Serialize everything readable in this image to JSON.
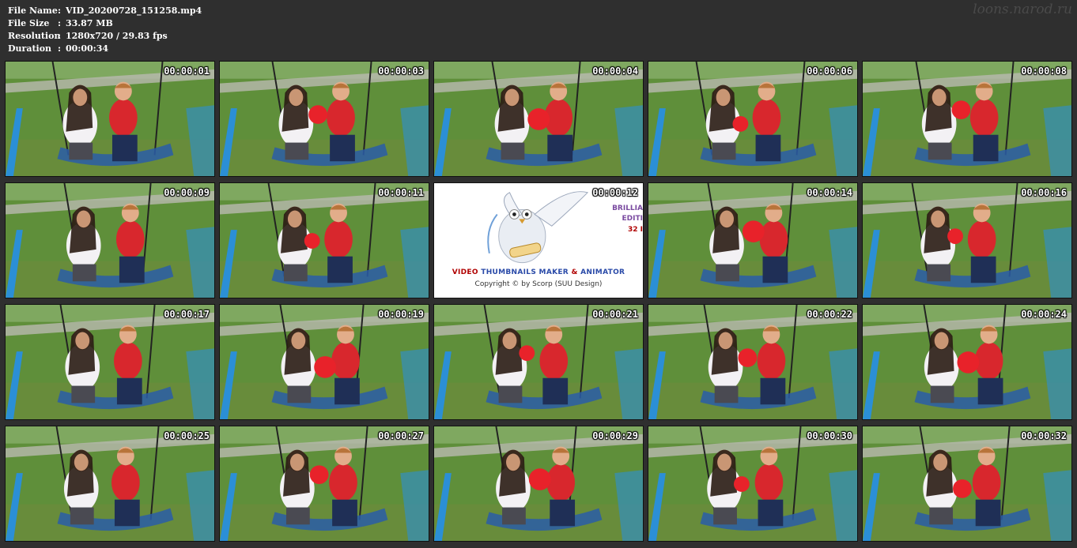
{
  "header": {
    "rows": [
      {
        "label": "File Name",
        "value": "VID_20200728_151258.mp4"
      },
      {
        "label": "File Size",
        "value": "33.87 MB"
      },
      {
        "label": "Resolution",
        "value": "1280x720 / 29.83 fps"
      },
      {
        "label": "Duration",
        "value": "00:00:34"
      }
    ],
    "colon": ":",
    "watermark": "loons.narod.ru"
  },
  "thumbnails": [
    {
      "time": "00:00:01"
    },
    {
      "time": "00:00:03"
    },
    {
      "time": "00:00:04"
    },
    {
      "time": "00:00:06"
    },
    {
      "time": "00:00:08"
    },
    {
      "time": "00:00:09"
    },
    {
      "time": "00:00:11"
    },
    {
      "time": "00:00:12",
      "logo": true
    },
    {
      "time": "00:00:14"
    },
    {
      "time": "00:00:16"
    },
    {
      "time": "00:00:17"
    },
    {
      "time": "00:00:19"
    },
    {
      "time": "00:00:21"
    },
    {
      "time": "00:00:22"
    },
    {
      "time": "00:00:24"
    },
    {
      "time": "00:00:25"
    },
    {
      "time": "00:00:27"
    },
    {
      "time": "00:00:29"
    },
    {
      "time": "00:00:30"
    },
    {
      "time": "00:00:32"
    }
  ],
  "logo_card": {
    "title_part1": "VIDEO",
    "title_part2": "THUMBNAILS MAKER",
    "title_part3": "&",
    "title_part4": "ANIMATOR",
    "copyright": "Copyright © by Scorp (SUU Design)",
    "side_line1": "BRILLIA",
    "side_line2": "EDITI",
    "side_line3": "32 I"
  },
  "colors": {
    "background": "#2f2f2f",
    "grass": "#5f8f3a",
    "path": "#b9b9b0",
    "swing_blue": "#2b8fd6",
    "balloon_red": "#e8222a"
  }
}
